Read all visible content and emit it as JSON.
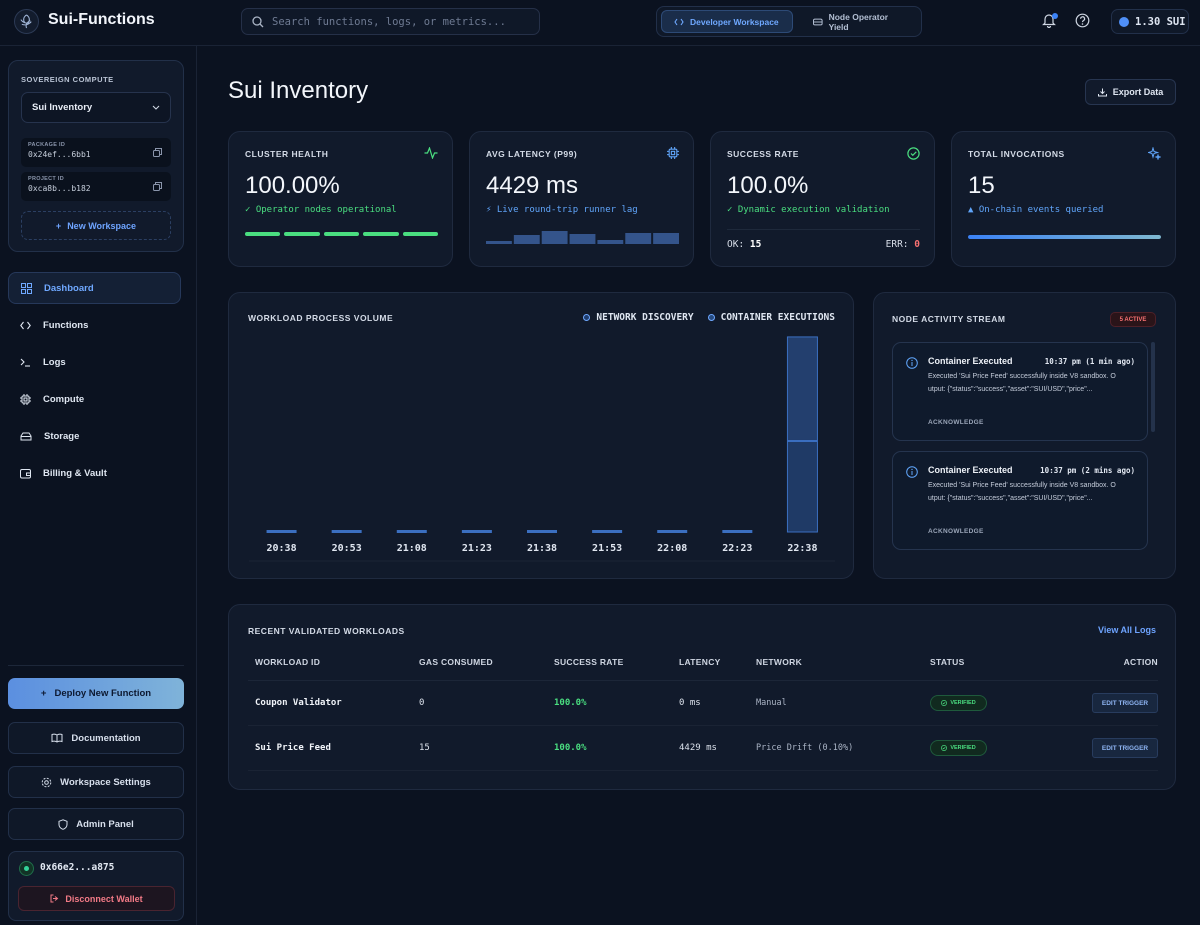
{
  "header": {
    "app_title": "Sui-Functions",
    "search_placeholder": "Search functions, logs, or metrics...",
    "workspace_tabs": [
      "Developer Workspace",
      "Node Operator Yield"
    ],
    "balance": "1.30 SUI"
  },
  "sidebar": {
    "section_label": "SOVEREIGN COMPUTE",
    "selected_workspace": "Sui Inventory",
    "package_id_label": "PACKAGE ID",
    "package_id": "0x24ef...6bb1",
    "project_id_label": "PROJECT ID",
    "project_id": "0xca8b...b182",
    "new_workspace": "New Workspace",
    "nav": [
      {
        "label": "Dashboard",
        "icon": "grid-icon"
      },
      {
        "label": "Functions",
        "icon": "code-icon"
      },
      {
        "label": "Logs",
        "icon": "terminal-icon"
      },
      {
        "label": "Compute",
        "icon": "cpu-icon"
      },
      {
        "label": "Storage",
        "icon": "storage-icon"
      },
      {
        "label": "Billing & Vault",
        "icon": "wallet-icon"
      }
    ],
    "deploy_button": "Deploy New Function",
    "documentation_button": "Documentation",
    "settings_button": "Workspace Settings",
    "admin_button": "Admin Panel",
    "wallet_address": "0x66e2...a875",
    "disconnect_button": "Disconnect Wallet"
  },
  "main": {
    "page_title": "Sui Inventory",
    "export_button": "Export Data",
    "stats": [
      {
        "label": "CLUSTER HEALTH",
        "value": "100.00%",
        "sub": "✓ Operator nodes operational",
        "icon": "activity-icon"
      },
      {
        "label": "AVG LATENCY (P99)",
        "value": "4429 ms",
        "sub": "⚡ Live round-trip runner lag",
        "icon": "cpu-icon"
      },
      {
        "label": "SUCCESS RATE",
        "value": "100.0%",
        "sub": "✓ Dynamic execution validation",
        "icon": "check-circle-icon",
        "ok_label": "OK:",
        "ok_value": "15",
        "err_label": "ERR:",
        "err_value": "0"
      },
      {
        "label": "TOTAL INVOCATIONS",
        "value": "15",
        "sub": "▲ On-chain events queried",
        "icon": "sparkle-icon",
        "progress": 1.0
      }
    ],
    "latency_spark": [
      0.15,
      0.45,
      0.65,
      0.5,
      0.2,
      0.55,
      0.55
    ],
    "workload": {
      "title": "WORKLOAD PROCESS VOLUME",
      "legend": [
        "NETWORK DISCOVERY",
        "CONTAINER EXECUTIONS"
      ]
    },
    "activity": {
      "title": "NODE ACTIVITY STREAM",
      "badge": "5 ACTIVE",
      "events": [
        {
          "title": "Container Executed",
          "time": "10:37 pm (1 min ago)",
          "body": "Executed 'Sui Price Feed' successfully inside V8 sandbox. Output: {\"status\":\"success\",\"asset\":\"SUI/USD\",\"price\"...",
          "ack": "ACKNOWLEDGE"
        },
        {
          "title": "Container Executed",
          "time": "10:37 pm (2 mins ago)",
          "body": "Executed 'Sui Price Feed' successfully inside V8 sandbox. Output: {\"status\":\"success\",\"asset\":\"SUI/USD\",\"price\"...",
          "ack": "ACKNOWLEDGE"
        }
      ]
    },
    "table": {
      "title": "RECENT VALIDATED WORKLOADS",
      "view_all": "View All Logs",
      "headers": [
        "WORKLOAD ID",
        "GAS CONSUMED",
        "SUCCESS RATE",
        "LATENCY",
        "NETWORK",
        "STATUS",
        "ACTION"
      ],
      "rows": [
        {
          "name": "Coupon Validator",
          "gas": "0",
          "rate": "100.0%",
          "latency": "0 ms",
          "network": "Manual",
          "status": "VERIFIED",
          "action": "EDIT TRIGGER"
        },
        {
          "name": "Sui Price Feed",
          "gas": "15",
          "rate": "100.0%",
          "latency": "4429 ms",
          "network": "Price Drift (0.10%)",
          "status": "VERIFIED",
          "action": "EDIT TRIGGER"
        }
      ]
    }
  },
  "chart_data": {
    "type": "bar",
    "title": "WORKLOAD PROCESS VOLUME",
    "categories": [
      "20:38",
      "20:53",
      "21:08",
      "21:23",
      "21:38",
      "21:53",
      "22:08",
      "22:23",
      "22:38"
    ],
    "series": [
      {
        "name": "NETWORK DISCOVERY",
        "values": [
          0,
          0,
          0,
          0,
          0,
          0,
          0,
          0,
          7
        ]
      },
      {
        "name": "CONTAINER EXECUTIONS",
        "values": [
          0,
          0,
          0,
          0,
          0,
          0,
          0,
          0,
          8
        ]
      }
    ],
    "stacked": true,
    "legend": "top-right",
    "grid": false
  }
}
